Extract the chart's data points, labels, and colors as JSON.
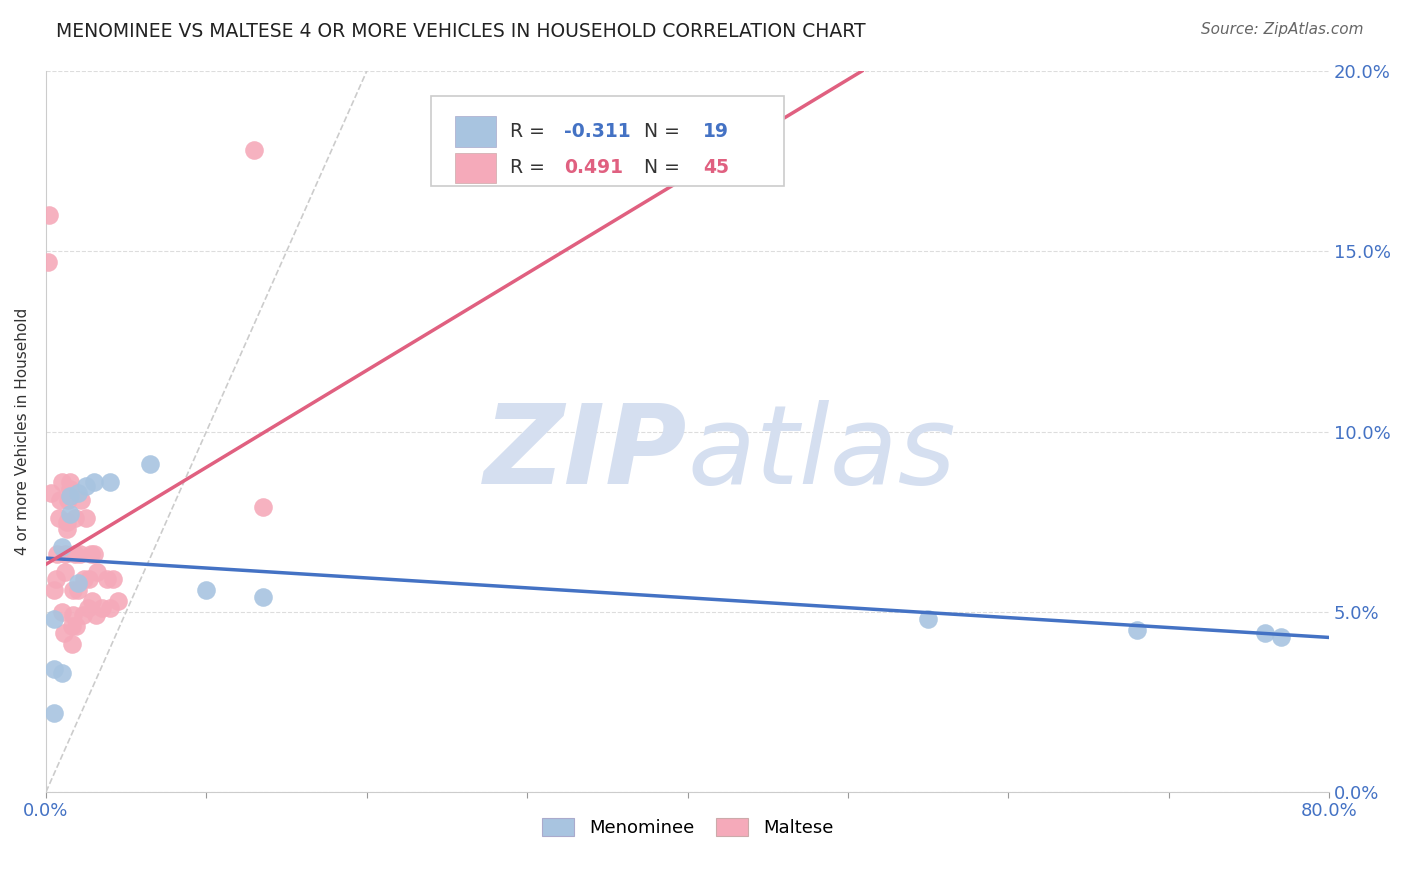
{
  "title": "MENOMINEE VS MALTESE 4 OR MORE VEHICLES IN HOUSEHOLD CORRELATION CHART",
  "source": "Source: ZipAtlas.com",
  "ylabel": "4 or more Vehicles in Household",
  "xlim": [
    0.0,
    0.8
  ],
  "ylim": [
    0.0,
    0.2
  ],
  "xticks": [
    0.0,
    0.8
  ],
  "xtick_labels_outer": [
    "0.0%",
    "80.0%"
  ],
  "ytick_labels": [
    "0.0%",
    "5.0%",
    "10.0%",
    "15.0%",
    "20.0%"
  ],
  "yticks": [
    0.0,
    0.05,
    0.1,
    0.15,
    0.2
  ],
  "menominee_color": "#a8c4e0",
  "maltese_color": "#f5aaba",
  "menominee_line_color": "#4472c4",
  "maltese_line_color": "#e06080",
  "diagonal_color": "#cccccc",
  "R_menominee": -0.311,
  "N_menominee": 19,
  "R_maltese": 0.491,
  "N_maltese": 45,
  "menominee_x": [
    0.005,
    0.01,
    0.015,
    0.015,
    0.02,
    0.025,
    0.01,
    0.005,
    0.005,
    0.02,
    0.03,
    0.04,
    0.065,
    0.1,
    0.135,
    0.55,
    0.68,
    0.76,
    0.77
  ],
  "menominee_y": [
    0.034,
    0.033,
    0.077,
    0.082,
    0.083,
    0.085,
    0.068,
    0.048,
    0.022,
    0.058,
    0.086,
    0.086,
    0.091,
    0.056,
    0.054,
    0.048,
    0.045,
    0.044,
    0.043
  ],
  "maltese_x": [
    0.001,
    0.002,
    0.003,
    0.005,
    0.006,
    0.007,
    0.008,
    0.009,
    0.01,
    0.01,
    0.011,
    0.012,
    0.012,
    0.013,
    0.013,
    0.014,
    0.015,
    0.015,
    0.016,
    0.016,
    0.017,
    0.017,
    0.018,
    0.018,
    0.019,
    0.02,
    0.021,
    0.022,
    0.023,
    0.024,
    0.025,
    0.026,
    0.027,
    0.028,
    0.029,
    0.03,
    0.031,
    0.032,
    0.035,
    0.038,
    0.04,
    0.042,
    0.045,
    0.13,
    0.135
  ],
  "maltese_y": [
    0.147,
    0.16,
    0.083,
    0.056,
    0.059,
    0.066,
    0.076,
    0.081,
    0.086,
    0.05,
    0.044,
    0.061,
    0.066,
    0.073,
    0.075,
    0.081,
    0.084,
    0.086,
    0.041,
    0.046,
    0.049,
    0.056,
    0.066,
    0.076,
    0.046,
    0.056,
    0.066,
    0.081,
    0.049,
    0.059,
    0.076,
    0.051,
    0.059,
    0.066,
    0.053,
    0.066,
    0.049,
    0.061,
    0.051,
    0.059,
    0.051,
    0.059,
    0.053,
    0.178,
    0.079
  ],
  "menominee_trendline_x": [
    0.0,
    0.8
  ],
  "maltese_trendline_x": [
    0.0,
    0.14
  ],
  "watermark_zip": "ZIP",
  "watermark_atlas": "atlas",
  "watermark_color": "#d5dff0",
  "background_color": "#ffffff",
  "grid_color": "#dddddd",
  "legend_R_color": "#4472c4",
  "legend_N_color": "#4472c4",
  "legend_R2_color": "#e06080",
  "legend_N2_color": "#e06080"
}
